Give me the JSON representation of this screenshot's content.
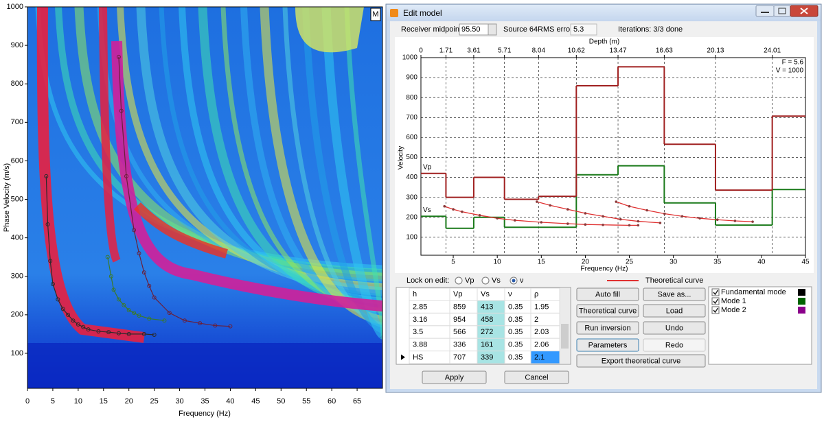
{
  "spectrogram": {
    "y_label": "Phase Velocity (m/s)",
    "x_label": "Frequency (Hz)",
    "xlim": [
      0,
      70
    ],
    "xticks": [
      0,
      5,
      10,
      15,
      20,
      25,
      30,
      35,
      40,
      45,
      50,
      55,
      60,
      65
    ],
    "ylim": [
      9,
      1000
    ],
    "yticks": [
      100,
      200,
      300,
      400,
      500,
      600,
      700,
      800,
      900,
      1000
    ],
    "marker": "M",
    "picks": [
      {
        "color": "#2a2a2a",
        "x": [
          3.7,
          4,
          4.5,
          5,
          6,
          7,
          8,
          9,
          10,
          11,
          12,
          14,
          16,
          18,
          20,
          23,
          25
        ],
        "values": [
          560,
          435,
          340,
          280,
          240,
          215,
          200,
          185,
          175,
          168,
          162,
          157,
          155,
          152,
          150,
          150,
          148
        ]
      },
      {
        "color": "#3a7a2a",
        "x": [
          15.8,
          16.5,
          17,
          18,
          19,
          20,
          21,
          22,
          24,
          27
        ],
        "values": [
          350,
          300,
          265,
          240,
          225,
          212,
          205,
          198,
          190,
          185
        ]
      },
      {
        "color": "#6a1f3a",
        "x": [
          18,
          18.5,
          19.5,
          21,
          22,
          23,
          24,
          25,
          28,
          31,
          34,
          37,
          40
        ],
        "values": [
          870,
          730,
          560,
          420,
          360,
          310,
          275,
          245,
          205,
          185,
          178,
          172,
          170
        ]
      }
    ]
  },
  "dialog": {
    "title": "Edit model",
    "receiver_label": "Receiver midpoint",
    "receiver_value": "95.50",
    "source": "Source 64",
    "rms_label": "RMS error",
    "rms_value": "5.3",
    "iterations": "Iterations: 3/3 done",
    "chart": {
      "type": "line",
      "top_label": "Depth (m)",
      "depth_lim": [
        0,
        26.28
      ],
      "depth_ticks": [
        0,
        1.71,
        3.61,
        5.71,
        8.04,
        10.62,
        13.47,
        16.63,
        20.13,
        24.01
      ],
      "y_label": "Velocity",
      "x_label": "Frequency (Hz)",
      "xlim": [
        1.33,
        45
      ],
      "xticks": [
        5,
        10,
        15,
        20,
        25,
        30,
        35,
        40,
        45
      ],
      "ylim": [
        10,
        1000
      ],
      "yticks": [
        100,
        200,
        300,
        400,
        500,
        600,
        700,
        800,
        900,
        1000
      ],
      "grid": true,
      "annotations": [
        "F = 5.6",
        "V = 1000"
      ],
      "vp_label": "Vp",
      "vs_label": "Vs",
      "vp_color": "#a02020",
      "vs_color": "#1a7a1a",
      "vp": [
        420,
        300,
        400,
        290,
        305,
        859,
        954,
        566,
        336,
        707
      ],
      "vs": [
        205,
        145,
        200,
        150,
        150,
        413,
        458,
        272,
        161,
        339
      ],
      "curve_color": "#8b3a3a",
      "curves": [
        {
          "x": [
            4,
            5,
            6,
            8,
            10,
            12,
            15,
            18,
            20,
            22,
            25,
            26
          ],
          "values": [
            255,
            240,
            228,
            210,
            195,
            185,
            175,
            168,
            164,
            162,
            160,
            160
          ]
        },
        {
          "x": [
            14.5,
            16,
            18,
            20,
            22,
            24,
            26,
            28.5
          ],
          "values": [
            278,
            260,
            240,
            220,
            205,
            190,
            180,
            172
          ]
        },
        {
          "x": [
            23.5,
            25,
            27,
            29,
            31,
            33,
            35,
            37,
            39
          ],
          "values": [
            278,
            255,
            235,
            218,
            205,
            195,
            188,
            182,
            178
          ]
        }
      ]
    },
    "lock_label": "Lock on edit:",
    "lock_options": [
      "Vp",
      "Vs",
      "ν"
    ],
    "lock_selected": 2,
    "theoretical_label": "Theoretical curve",
    "theoretical_color": "#e03030",
    "table": {
      "columns": [
        "h",
        "Vp",
        "Vs",
        "ν",
        "ρ"
      ],
      "rows": [
        [
          "2.85",
          "859",
          "413",
          "0.35",
          "1.95"
        ],
        [
          "3.16",
          "954",
          "458",
          "0.35",
          "2"
        ],
        [
          "3.5",
          "566",
          "272",
          "0.35",
          "2.03"
        ],
        [
          "3.88",
          "336",
          "161",
          "0.35",
          "2.06"
        ],
        [
          "HS",
          "707",
          "339",
          "0.35",
          "2.1"
        ]
      ],
      "selected_row": 4
    },
    "buttons": [
      {
        "label": "Auto fill",
        "enabled": true
      },
      {
        "label": "Theoretical curve",
        "enabled": true
      },
      {
        "label": "Run inversion",
        "enabled": true
      },
      {
        "label": "Parameters",
        "enabled": true
      },
      {
        "label": "Save as...",
        "enabled": true
      },
      {
        "label": "Load",
        "enabled": true
      },
      {
        "label": "Undo",
        "enabled": true
      },
      {
        "label": "Redo",
        "enabled": false
      },
      {
        "label": "Export theoretical curve",
        "enabled": true
      }
    ],
    "modes": [
      {
        "name": "Fundamental mode",
        "color": "#000000",
        "checked": true
      },
      {
        "name": "Mode 1",
        "color": "#006400",
        "checked": true
      },
      {
        "name": "Mode 2",
        "color": "#8b008b",
        "checked": true
      }
    ],
    "apply": "Apply",
    "cancel": "Cancel"
  }
}
